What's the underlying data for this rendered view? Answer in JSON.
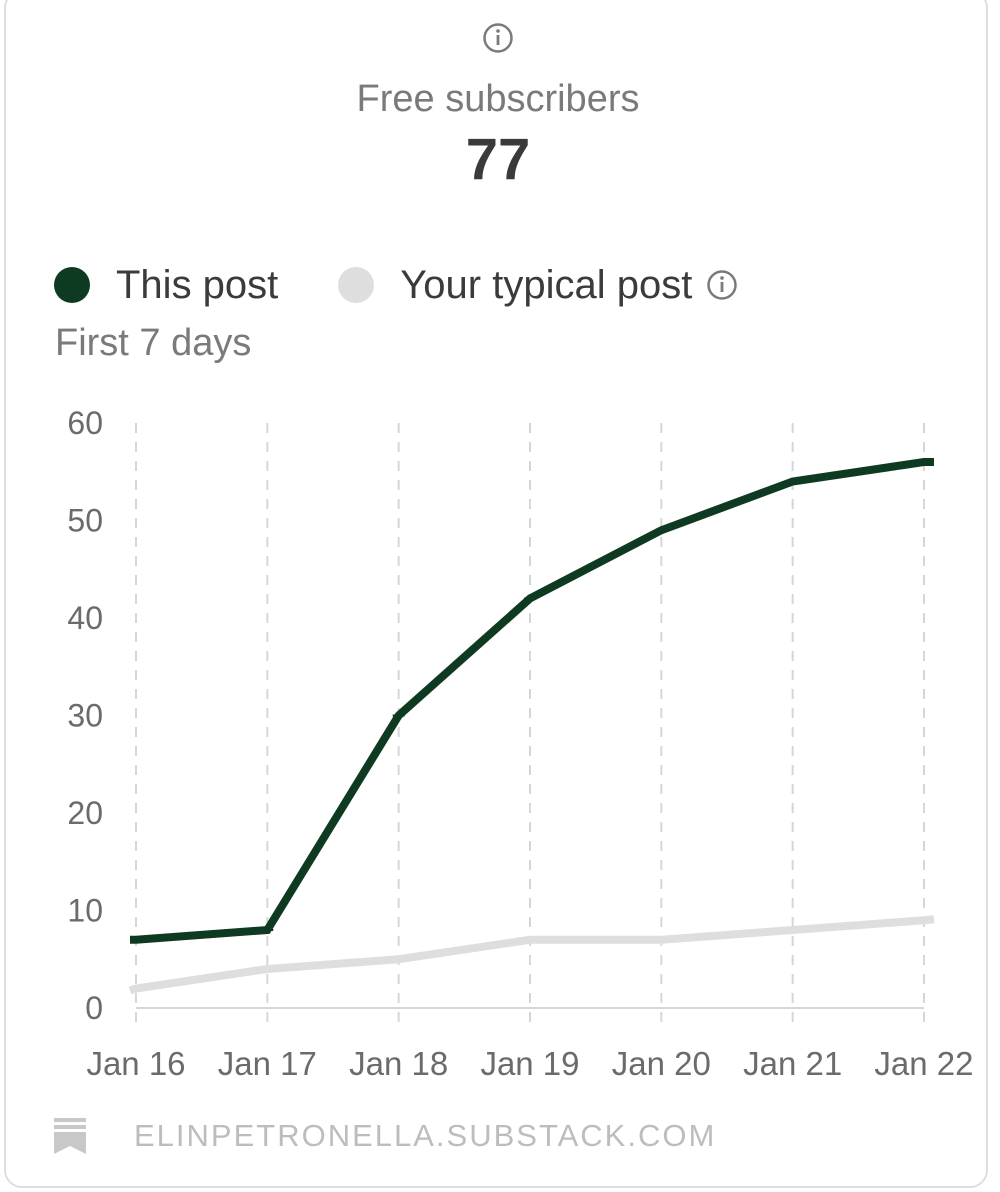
{
  "metric": {
    "title": "Free subscribers",
    "value": "77"
  },
  "legend": {
    "this_post": "This post",
    "typical_post": "Your typical post"
  },
  "subtitle": "First 7 days",
  "footer": {
    "site": "ELINPETRONELLA.SUBSTACK.COM"
  },
  "colors": {
    "this_post": "#0f3a22",
    "typical_post": "#dedede",
    "grid": "#d6d6d6",
    "axis_text": "#6b6b6b"
  },
  "icons": {
    "info": "info-circle-icon",
    "bookmark": "bookmark-icon"
  },
  "chart_data": {
    "type": "line",
    "categories": [
      "Jan 16",
      "Jan 17",
      "Jan 18",
      "Jan 19",
      "Jan 20",
      "Jan 21",
      "Jan 22"
    ],
    "series": [
      {
        "name": "This post",
        "values": [
          7,
          8,
          30,
          42,
          49,
          54,
          56
        ]
      },
      {
        "name": "Your typical post",
        "values": [
          2,
          4,
          5,
          7,
          7,
          8,
          9
        ]
      }
    ],
    "y_ticks": [
      0,
      10,
      20,
      30,
      40,
      50,
      60
    ],
    "ylim": [
      0,
      60
    ],
    "xlabel": "",
    "ylabel": "",
    "grid": "vertical-dashed",
    "legend_position": "top-left"
  }
}
